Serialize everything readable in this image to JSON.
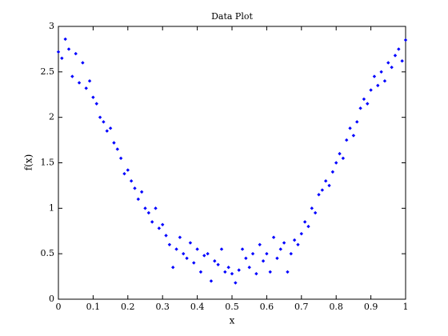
{
  "chart_data": {
    "type": "scatter",
    "title": "Data Plot",
    "xlabel": "x",
    "ylabel": "f(x)",
    "color": "#0000ff",
    "x": [
      0,
      0.01,
      0.02,
      0.03,
      0.04,
      0.05,
      0.06,
      0.07,
      0.08,
      0.09,
      0.1,
      0.11,
      0.12,
      0.13,
      0.14,
      0.15,
      0.16,
      0.17,
      0.18,
      0.19,
      0.2,
      0.21,
      0.22,
      0.23,
      0.24,
      0.25,
      0.26,
      0.27,
      0.28,
      0.29,
      0.3,
      0.31,
      0.32,
      0.33,
      0.34,
      0.35,
      0.36,
      0.37,
      0.38,
      0.39,
      0.4,
      0.41,
      0.42,
      0.43,
      0.44,
      0.45,
      0.46,
      0.47,
      0.48,
      0.49,
      0.5,
      0.51,
      0.52,
      0.53,
      0.54,
      0.55,
      0.56,
      0.57,
      0.58,
      0.59,
      0.6,
      0.61,
      0.62,
      0.63,
      0.64,
      0.65,
      0.66,
      0.67,
      0.68,
      0.69,
      0.7,
      0.71,
      0.72,
      0.73,
      0.74,
      0.75,
      0.76,
      0.77,
      0.78,
      0.79,
      0.8,
      0.81,
      0.82,
      0.83,
      0.84,
      0.85,
      0.86,
      0.87,
      0.88,
      0.89,
      0.9,
      0.91,
      0.92,
      0.93,
      0.94,
      0.95,
      0.96,
      0.97,
      0.98,
      0.99,
      1
    ],
    "values": [
      2.72,
      2.65,
      2.86,
      2.75,
      2.45,
      2.7,
      2.38,
      2.6,
      2.32,
      2.4,
      2.22,
      2.15,
      2.0,
      1.95,
      1.85,
      1.88,
      1.72,
      1.65,
      1.55,
      1.38,
      1.42,
      1.3,
      1.22,
      1.1,
      1.18,
      1.0,
      0.95,
      0.85,
      1.0,
      0.78,
      0.82,
      0.7,
      0.6,
      0.35,
      0.55,
      0.68,
      0.5,
      0.45,
      0.62,
      0.4,
      0.55,
      0.3,
      0.48,
      0.5,
      0.2,
      0.42,
      0.38,
      0.55,
      0.3,
      0.35,
      0.28,
      0.18,
      0.32,
      0.55,
      0.45,
      0.35,
      0.5,
      0.28,
      0.6,
      0.42,
      0.5,
      0.3,
      0.68,
      0.45,
      0.55,
      0.62,
      0.3,
      0.5,
      0.65,
      0.6,
      0.72,
      0.85,
      0.8,
      1.0,
      0.95,
      1.15,
      1.2,
      1.3,
      1.25,
      1.4,
      1.5,
      1.6,
      1.55,
      1.75,
      1.88,
      1.8,
      1.95,
      2.1,
      2.2,
      2.15,
      2.3,
      2.45,
      2.35,
      2.5,
      2.4,
      2.6,
      2.55,
      2.68,
      2.75,
      2.62,
      2.85
    ],
    "xlim": [
      0,
      1
    ],
    "xticks": [
      0,
      0.1,
      0.2,
      0.3,
      0.4,
      0.5,
      0.6,
      0.7,
      0.8,
      0.9,
      1
    ],
    "ylim": [
      0,
      3
    ],
    "yticks": [
      0,
      0.5,
      1,
      1.5,
      2,
      2.5,
      3
    ]
  }
}
